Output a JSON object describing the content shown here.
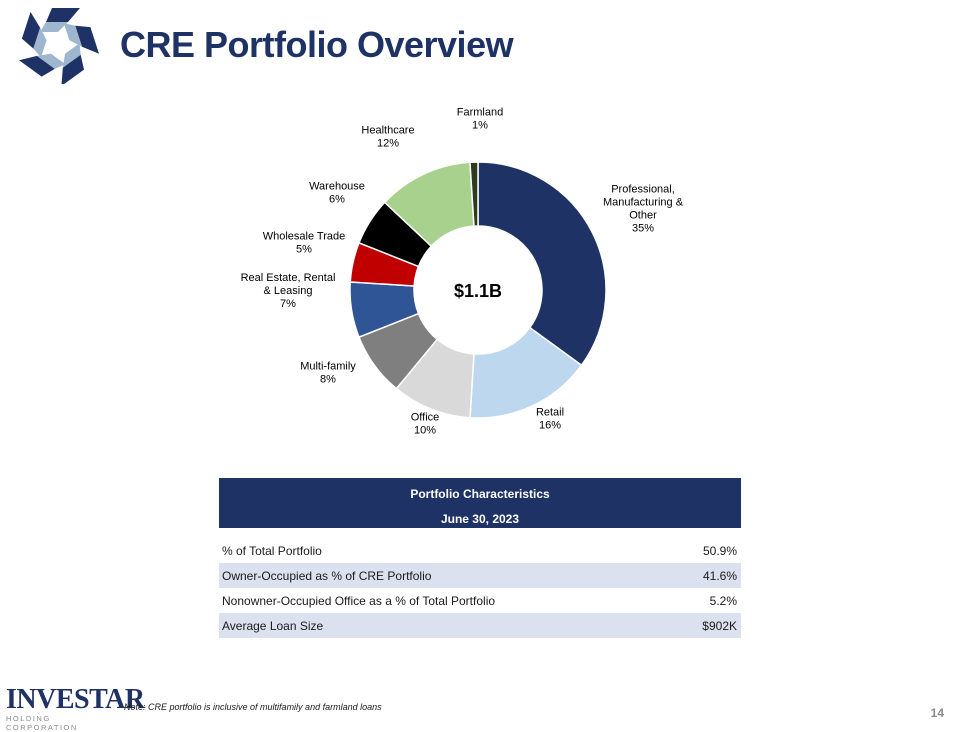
{
  "title": "CRE Portfolio Overview",
  "colors": {
    "title": "#1f3265",
    "navy": "#1f3265",
    "table_header": "#1f3265",
    "page_number": "#8a8a8a"
  },
  "chart_data": {
    "type": "pie",
    "variant": "donut",
    "center_label": "$1.1B",
    "slices": [
      {
        "name": "Professional, Manufacturing & Other",
        "label_lines": [
          "Professional,",
          "Manufacturing &",
          "Other"
        ],
        "value": 35,
        "pct_label": "35%",
        "color": "#1f3265"
      },
      {
        "name": "Retail",
        "label_lines": [
          "Retail"
        ],
        "value": 16,
        "pct_label": "16%",
        "color": "#bdd7ee"
      },
      {
        "name": "Office",
        "label_lines": [
          "Office"
        ],
        "value": 10,
        "pct_label": "10%",
        "color": "#d9d9d9"
      },
      {
        "name": "Multi-family",
        "label_lines": [
          "Multi-family"
        ],
        "value": 8,
        "pct_label": "8%",
        "color": "#7f7f7f"
      },
      {
        "name": "Real Estate, Rental & Leasing",
        "label_lines": [
          "Real Estate, Rental",
          "& Leasing"
        ],
        "value": 7,
        "pct_label": "7%",
        "color": "#2f5597"
      },
      {
        "name": "Wholesale Trade",
        "label_lines": [
          "Wholesale Trade"
        ],
        "value": 5,
        "pct_label": "5%",
        "color": "#c00000"
      },
      {
        "name": "Warehouse",
        "label_lines": [
          "Warehouse"
        ],
        "value": 6,
        "pct_label": "6%",
        "color": "#000000"
      },
      {
        "name": "Healthcare",
        "label_lines": [
          "Healthcare"
        ],
        "value": 12,
        "pct_label": "12%",
        "color": "#a9d18e"
      },
      {
        "name": "Farmland",
        "label_lines": [
          "Farmland"
        ],
        "value": 1,
        "pct_label": "1%",
        "color": "#2e3b1f"
      }
    ]
  },
  "table": {
    "header_title": "Portfolio Characteristics",
    "header_date": "June 30, 2023",
    "rows": [
      {
        "label": "% of Total Portfolio",
        "value": "50.9%"
      },
      {
        "label": "Owner-Occupied as % of CRE Portfolio",
        "value": "41.6%"
      },
      {
        "label": "Nonowner-Occupied Office as a % of Total Portfolio",
        "value": "5.2%"
      },
      {
        "label": "Average Loan Size",
        "value": "$902K"
      }
    ]
  },
  "footer": {
    "brand": "INVESTAR",
    "brand_sub": "HOLDING CORPORATION",
    "note": "Note: CRE portfolio is inclusive of multifamily and farmland loans",
    "page_number": "14"
  }
}
